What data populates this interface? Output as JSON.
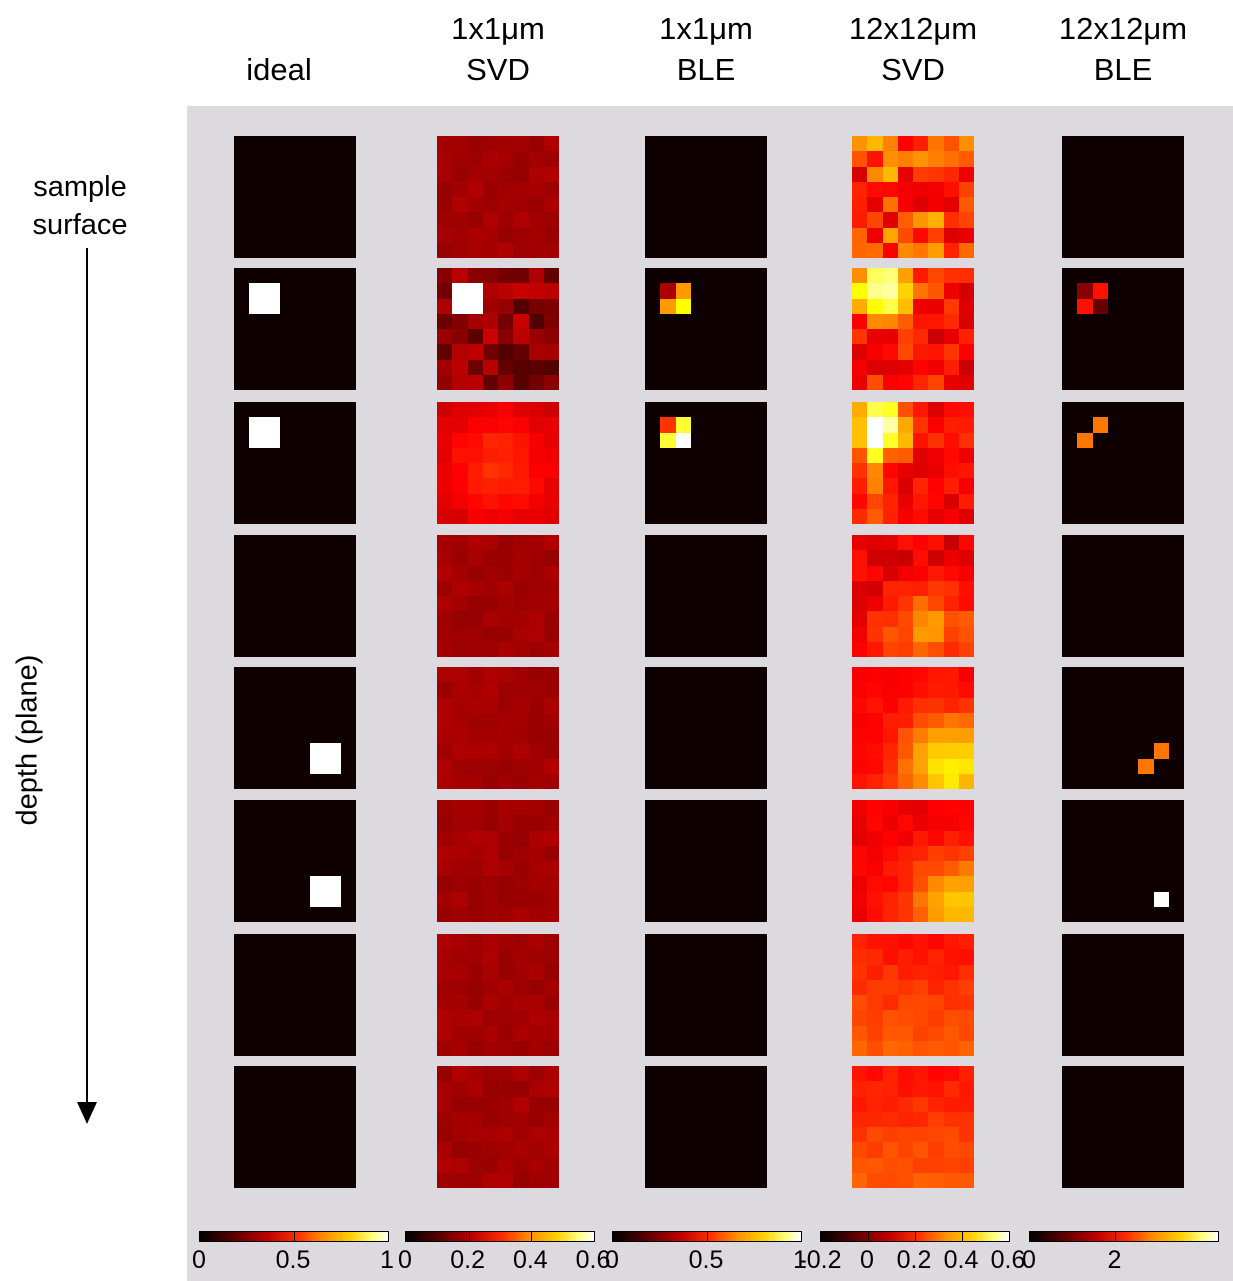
{
  "figure": {
    "columns": [
      {
        "id": "ideal",
        "title_lines": [
          "ideal"
        ]
      },
      {
        "id": "1x1-svd",
        "title_lines": [
          "1x1μm",
          "SVD"
        ]
      },
      {
        "id": "1x1-ble",
        "title_lines": [
          "1x1μm",
          "BLE"
        ]
      },
      {
        "id": "12x12-svd",
        "title_lines": [
          "12x12μm",
          "SVD"
        ]
      },
      {
        "id": "12x12-ble",
        "title_lines": [
          "12x12μm",
          "BLE"
        ]
      }
    ],
    "surface_label_lines": [
      "sample",
      "surface"
    ],
    "depth_label": "depth (plane)",
    "planes": 8,
    "colormap": "hot",
    "colors": {
      "background": "#dcdade",
      "tile_dark": "#0a0000"
    },
    "colorbars": [
      {
        "column": "ideal",
        "tick_labels": [
          "0",
          "0.5",
          "1"
        ]
      },
      {
        "column": "1x1-svd",
        "tick_labels": [
          "0",
          "0.2",
          "0.4",
          "0.6"
        ]
      },
      {
        "column": "1x1-ble",
        "tick_labels": [
          "0",
          "0.5",
          "1"
        ]
      },
      {
        "column": "12x12-svd",
        "tick_labels": [
          "-0.2",
          "0",
          "0.2",
          "0.4",
          "0.6"
        ]
      },
      {
        "column": "12x12-ble",
        "tick_labels": [
          "0",
          "2"
        ]
      }
    ]
  }
}
